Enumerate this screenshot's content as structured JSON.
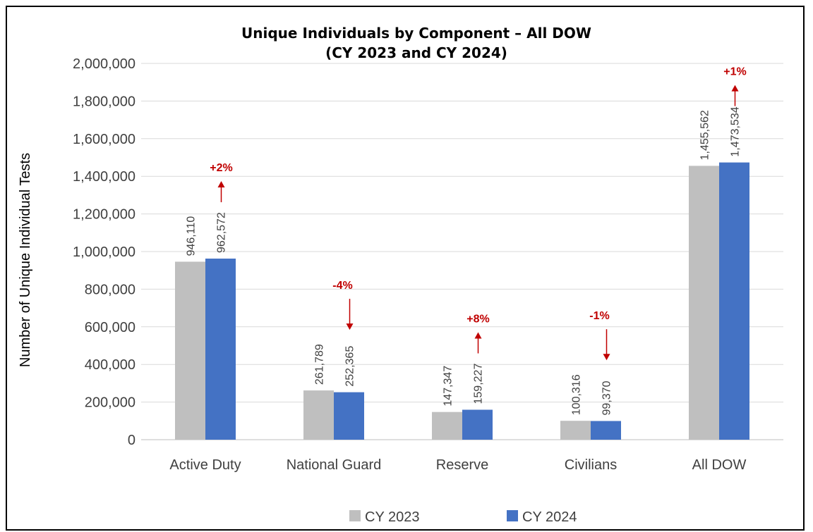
{
  "chart_data": {
    "type": "bar",
    "title": "Unique Individuals by Component – All DOW",
    "subtitle": "(CY 2023 and CY 2024)",
    "xlabel": "",
    "ylabel": "Number of Unique Individual Tests",
    "ylim": [
      0,
      2000000
    ],
    "yticks": [
      0,
      200000,
      400000,
      600000,
      800000,
      1000000,
      1200000,
      1400000,
      1600000,
      1800000,
      2000000
    ],
    "ytick_labels": [
      "0",
      "200,000",
      "400,000",
      "600,000",
      "800,000",
      "1,000,000",
      "1,200,000",
      "1,400,000",
      "1,600,000",
      "1,800,000",
      "2,000,000"
    ],
    "grid": true,
    "legend_position": "bottom",
    "categories": [
      "Active Duty",
      "National Guard",
      "Reserve",
      "Civilians",
      "All DOW"
    ],
    "series": [
      {
        "name": "CY 2023",
        "color": "#bfbfbf",
        "values": [
          946110,
          261789,
          147347,
          100316,
          1455562
        ],
        "labels": [
          "946,110",
          "261,789",
          "147,347",
          "100,316",
          "1,455,562"
        ]
      },
      {
        "name": "CY 2024",
        "color": "#4472c4",
        "values": [
          962572,
          252365,
          159227,
          99370,
          1473534
        ],
        "labels": [
          "962,572",
          "252,365",
          "159,227",
          "99,370",
          "1,473,534"
        ]
      }
    ],
    "annotations": [
      {
        "category": "Active Duty",
        "text": "+2%",
        "direction": "up"
      },
      {
        "category": "National Guard",
        "text": "-4%",
        "direction": "down"
      },
      {
        "category": "Reserve",
        "text": "+8%",
        "direction": "up"
      },
      {
        "category": "Civilians",
        "text": "-1%",
        "direction": "down"
      },
      {
        "category": "All DOW",
        "text": "+1%",
        "direction": "up"
      }
    ],
    "annotation_color": "#c00000"
  }
}
